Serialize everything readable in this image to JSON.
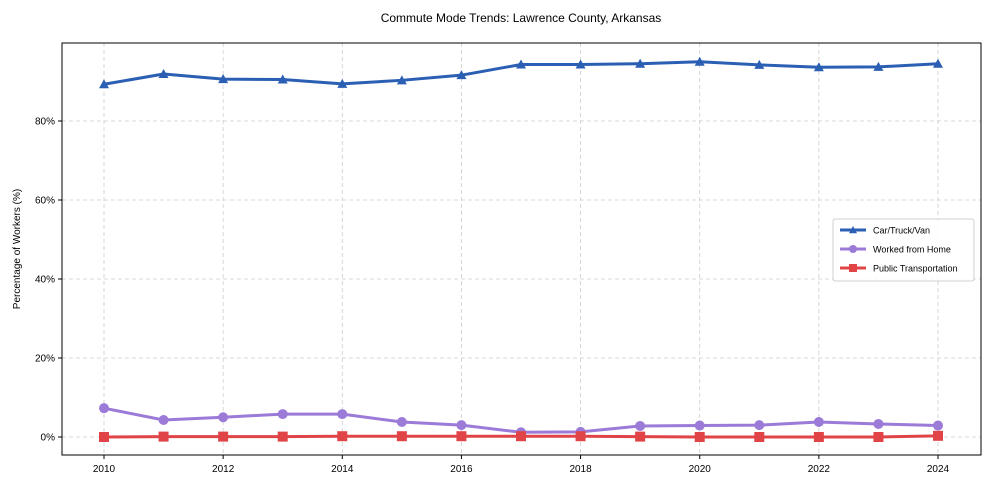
{
  "chart_data": {
    "type": "line",
    "title": "Commute Mode Trends: Lawrence County, Arkansas",
    "xlabel": "",
    "ylabel": "Percentage of Workers (%)",
    "x": [
      2010,
      2011,
      2012,
      2013,
      2014,
      2015,
      2016,
      2017,
      2018,
      2019,
      2020,
      2021,
      2022,
      2023,
      2024
    ],
    "xticks": [
      "2010",
      "2012",
      "2014",
      "2016",
      "2018",
      "2020",
      "2022",
      "2024"
    ],
    "yticks": [
      "0%",
      "20%",
      "40%",
      "60%",
      "80%"
    ],
    "ylim": [
      -4.6,
      100
    ],
    "xlim": [
      2009.3,
      2024.7
    ],
    "grid": true,
    "legend_position": "center right",
    "series": [
      {
        "name": "Car/Truck/Van",
        "color": "#2b5fb4",
        "marker": "triangle",
        "values": [
          89.3,
          91.9,
          90.6,
          90.5,
          89.4,
          90.3,
          91.6,
          94.3,
          94.3,
          94.5,
          95.0,
          94.2,
          93.6,
          93.7,
          94.5
        ]
      },
      {
        "name": "Worked from Home",
        "color": "#9b7ad8",
        "marker": "circle",
        "values": [
          7.3,
          4.3,
          5.0,
          5.8,
          5.8,
          3.8,
          3.0,
          1.2,
          1.3,
          2.8,
          2.9,
          3.0,
          3.8,
          3.3,
          2.9
        ]
      },
      {
        "name": "Public Transportation",
        "color": "#e04447",
        "marker": "square",
        "values": [
          0.0,
          0.1,
          0.1,
          0.1,
          0.2,
          0.2,
          0.2,
          0.2,
          0.2,
          0.1,
          0.0,
          0.0,
          0.0,
          0.0,
          0.3
        ]
      }
    ]
  }
}
